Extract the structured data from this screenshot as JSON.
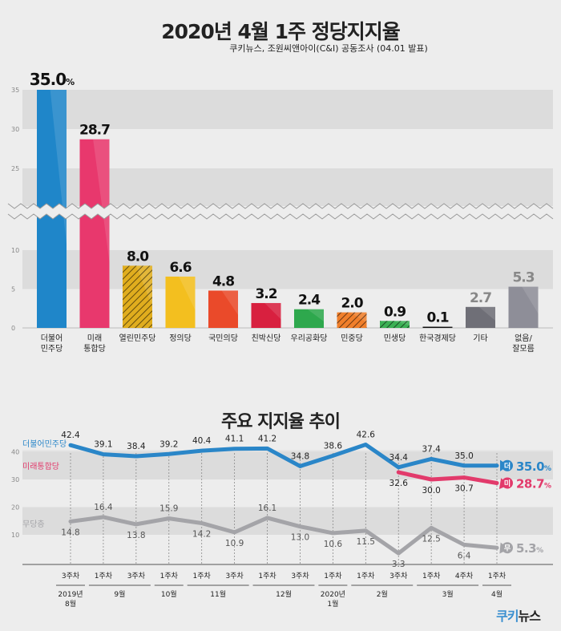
{
  "header": {
    "title": "2020년 4월 1주 정당지지율",
    "subtitle": "쿠키뉴스, 조원씨앤아이(C&I) 공동조사 (04.01 발표)"
  },
  "chart_data": [
    {
      "type": "bar",
      "axis_break": [
        10,
        25
      ],
      "ylim": [
        0,
        35
      ],
      "yticks": [
        "0",
        "5",
        "10",
        "25",
        "30",
        "35"
      ],
      "categories": [
        [
          "더불어",
          "민주당"
        ],
        [
          "미래",
          "통합당"
        ],
        [
          "열린민주당"
        ],
        [
          "정의당"
        ],
        [
          "국민의당"
        ],
        [
          "친박신당"
        ],
        [
          "우리공화당"
        ],
        [
          "민중당"
        ],
        [
          "민생당"
        ],
        [
          "한국경제당"
        ],
        [
          "기타"
        ],
        [
          "없음/",
          "잘모름"
        ]
      ],
      "values": [
        35.0,
        28.7,
        8.0,
        6.6,
        4.8,
        3.2,
        2.4,
        2.0,
        0.9,
        0.1,
        2.7,
        5.3
      ],
      "value_labels": [
        "35.0",
        "28.7",
        "8.0",
        "6.6",
        "4.8",
        "3.2",
        "2.4",
        "2.0",
        "0.9",
        "0.1",
        "2.7",
        "5.3"
      ],
      "top_unit": "%",
      "colors": [
        "#1f86c9",
        "#e8386d",
        "#e0ad1e",
        "#f3bf1f",
        "#ea4a2a",
        "#d8203f",
        "#2ea84d",
        "#f07f2b",
        "#3bb054",
        "#111111",
        "#6f6f77",
        "#8e8e98"
      ],
      "label_colors": [
        "#111111",
        "#111111",
        "#111111",
        "#111111",
        "#111111",
        "#111111",
        "#111111",
        "#111111",
        "#111111",
        "#111111",
        "#888888",
        "#888888"
      ]
    },
    {
      "type": "line",
      "title": "주요 지지율 추이",
      "yticks": [
        "10",
        "20",
        "30",
        "40"
      ],
      "x_ticks": [
        "3주차",
        "1주차",
        "3주차",
        "1주차",
        "1주차",
        "3주차",
        "1주차",
        "3주차",
        "1주차",
        "1주차",
        "3주차",
        "1주차",
        "4주차",
        "1주차"
      ],
      "months": [
        {
          "label": "2019년",
          "label2": "8월"
        },
        {
          "label": "9월",
          "label2": ""
        },
        {
          "label": "10월",
          "label2": ""
        },
        {
          "label": "11월",
          "label2": ""
        },
        {
          "label": "12월",
          "label2": ""
        },
        {
          "label": "2020년",
          "label2": "1월"
        },
        {
          "label": "2월",
          "label2": ""
        },
        {
          "label": "3월",
          "label2": ""
        },
        {
          "label": "4월",
          "label2": ""
        }
      ],
      "series": [
        {
          "name": "더불어민주당",
          "badge": "더",
          "color": "#2a86c8",
          "values": [
            42.4,
            39.1,
            38.4,
            39.2,
            40.4,
            41.1,
            41.2,
            34.8,
            38.6,
            42.6,
            34.4,
            37.4,
            35.0,
            35.0
          ],
          "labels": [
            "42.4",
            "39.1",
            "38.4",
            "39.2",
            "40.4",
            "41.1",
            "41.2",
            "34.8",
            "38.6",
            "42.6",
            "34.4",
            "37.4",
            "35.0",
            ""
          ],
          "end_label": "35.0"
        },
        {
          "name": "미래통합당",
          "badge": "미",
          "color": "#e23a6b",
          "start_index": 10,
          "values": [
            32.6,
            30.0,
            30.7,
            28.7
          ],
          "labels": [
            "32.6",
            "30.0",
            "30.7",
            ""
          ],
          "end_label": "28.7"
        },
        {
          "name": "무당층",
          "badge": "무",
          "color": "#a4a4a8",
          "values": [
            14.8,
            16.4,
            13.8,
            15.9,
            14.2,
            10.9,
            16.1,
            13.0,
            10.6,
            11.5,
            3.3,
            12.5,
            6.4,
            5.3
          ],
          "labels": [
            "14.8",
            "16.4",
            "13.8",
            "15.9",
            "14.2",
            "10.9",
            "16.1",
            "13.0",
            "10.6",
            "11.5",
            "3.3",
            "12.5",
            "6.4",
            ""
          ],
          "end_label": "5.3"
        }
      ],
      "unit": "%"
    }
  ],
  "logo": {
    "part1": "쿠키",
    "part2": "뉴스"
  }
}
